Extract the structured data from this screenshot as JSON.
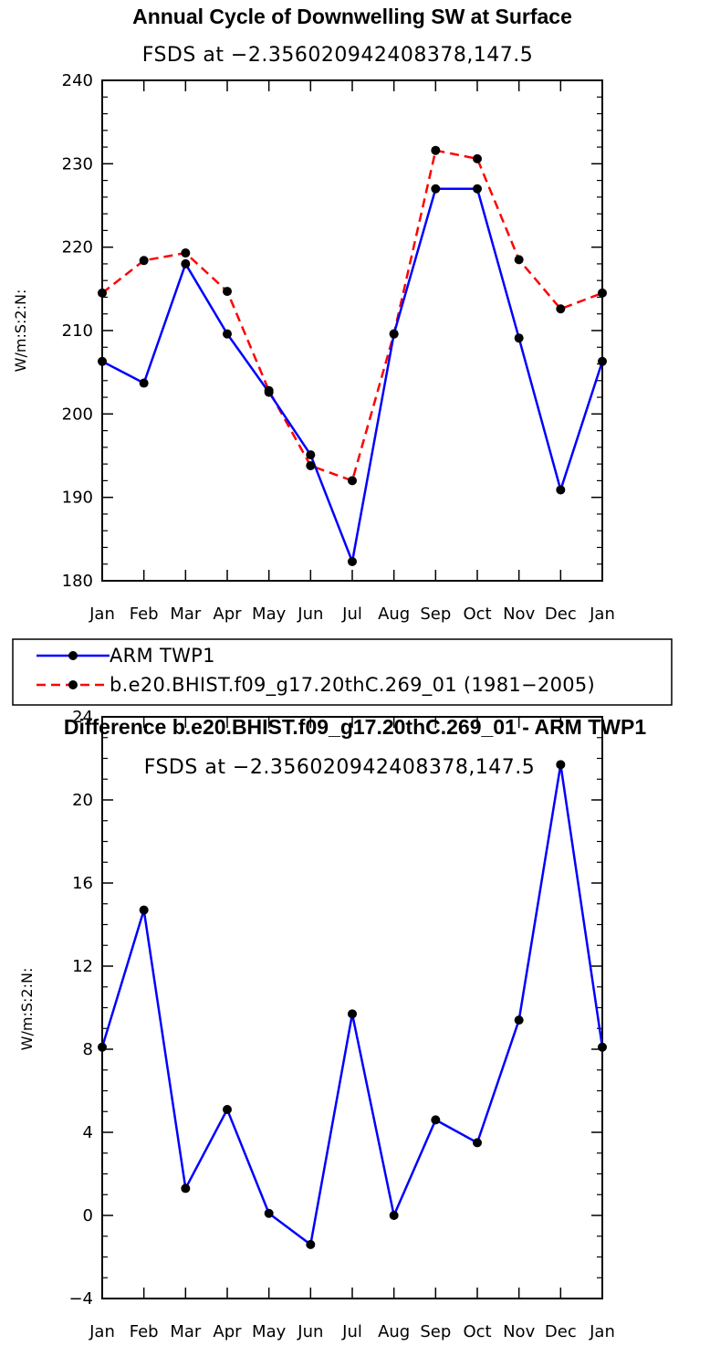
{
  "chart_data": [
    {
      "type": "line",
      "title": "Annual Cycle of Downwelling SW at Surface",
      "subtitle": "FSDS at −2.356020942408378,147.5",
      "ylabel": "W/m:S:2:N:",
      "xlabel": "",
      "categories": [
        "Jan",
        "Feb",
        "Mar",
        "Apr",
        "May",
        "Jun",
        "Jul",
        "Aug",
        "Sep",
        "Oct",
        "Nov",
        "Dec",
        "Jan"
      ],
      "ylim": [
        180,
        240
      ],
      "yticks": [
        180,
        190,
        200,
        210,
        220,
        230,
        240
      ],
      "series": [
        {
          "name": "ARM TWP1",
          "color": "#0000ff",
          "dash": "solid",
          "values": [
            206.3,
            203.7,
            218.0,
            209.6,
            202.6,
            195.1,
            182.3,
            209.6,
            227.0,
            227.0,
            209.1,
            190.9,
            206.3
          ]
        },
        {
          "name": "b.e20.BHIST.f09_g17.20thC.269_01 (1981−2005)",
          "color": "#ff0000",
          "dash": "dashed",
          "values": [
            214.5,
            218.4,
            219.3,
            214.7,
            202.8,
            193.8,
            192.0,
            209.6,
            231.6,
            230.6,
            218.5,
            212.6,
            214.5
          ]
        }
      ],
      "legend": {
        "position": "bottom-left",
        "entries": [
          "ARM TWP1",
          "b.e20.BHIST.f09_g17.20thC.269_01 (1981−2005)"
        ]
      }
    },
    {
      "type": "line",
      "title": "Difference b.e20.BHIST.f09_g17.20thC.269_01 - ARM TWP1",
      "subtitle": "FSDS at −2.356020942408378,147.5",
      "ylabel": "W/m:S:2:N:",
      "xlabel": "",
      "categories": [
        "Jan",
        "Feb",
        "Mar",
        "Apr",
        "May",
        "Jun",
        "Jul",
        "Aug",
        "Sep",
        "Oct",
        "Nov",
        "Dec",
        "Jan"
      ],
      "ylim": [
        -4,
        24
      ],
      "yticks": [
        -4,
        0,
        4,
        8,
        12,
        16,
        20,
        24
      ],
      "ytick_labels": [
        "−4",
        "0",
        "4",
        "8",
        "12",
        "16",
        "20",
        "24"
      ],
      "series": [
        {
          "name": "Difference",
          "color": "#0000ff",
          "dash": "solid",
          "values": [
            8.1,
            14.7,
            1.3,
            5.1,
            0.1,
            -1.4,
            9.7,
            0.0,
            4.6,
            3.5,
            9.4,
            21.7,
            8.1
          ]
        }
      ]
    }
  ]
}
